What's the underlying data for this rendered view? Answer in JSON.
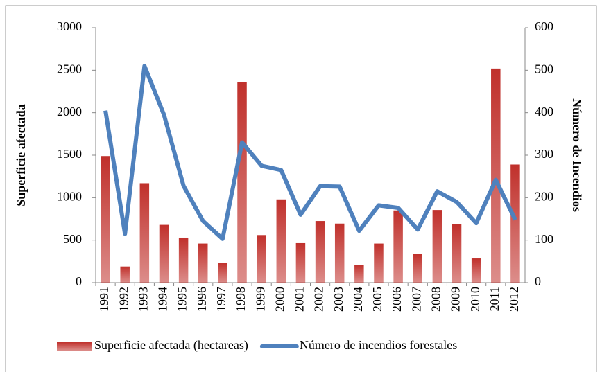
{
  "chart_data": {
    "type": "bar_line",
    "categories": [
      "1991",
      "1992",
      "1993",
      "1994",
      "1995",
      "1996",
      "1997",
      "1998",
      "1999",
      "2000",
      "2001",
      "2002",
      "2003",
      "2004",
      "2005",
      "2006",
      "2007",
      "2008",
      "2009",
      "2010",
      "2011",
      "2012"
    ],
    "series": [
      {
        "name": "Superficie afectada (hectareas)",
        "type": "bar",
        "color": "#c0302b",
        "values": [
          1490,
          190,
          1170,
          680,
          530,
          460,
          235,
          2360,
          560,
          980,
          465,
          725,
          695,
          210,
          460,
          850,
          335,
          855,
          685,
          285,
          2520,
          1390
        ]
      },
      {
        "name": "Número de incendios forestales",
        "type": "line",
        "axis": "y2",
        "color": "#4f81bd",
        "values": [
          405,
          115,
          510,
          395,
          228,
          145,
          103,
          330,
          275,
          265,
          160,
          227,
          226,
          122,
          182,
          176,
          125,
          215,
          190,
          140,
          242,
          148
        ]
      }
    ],
    "ylabel": "Superficie afectada",
    "y2label": "Número de Incendios",
    "ylim": [
      0,
      3000
    ],
    "yticks": [
      0,
      500,
      1000,
      1500,
      2000,
      2500,
      3000
    ],
    "y2lim": [
      0,
      600
    ],
    "y2ticks": [
      0,
      100,
      200,
      300,
      400,
      500,
      600
    ],
    "grid": false,
    "legend": "bottom"
  }
}
